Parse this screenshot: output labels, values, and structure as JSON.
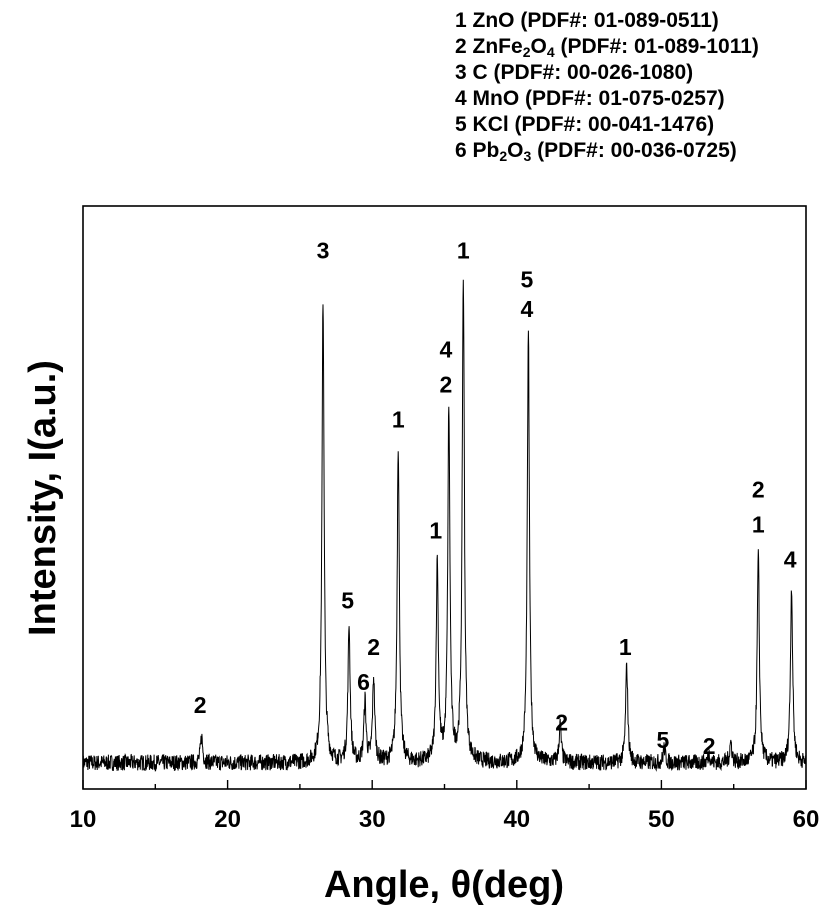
{
  "legend": {
    "entries": [
      {
        "num": "1",
        "pre": "ZnO",
        "s1": "",
        "mid": "",
        "s2": "",
        "post": " (PDF#:  01-089-0511)"
      },
      {
        "num": "2",
        "pre": "ZnFe",
        "s1": "2",
        "mid": "O",
        "s2": "4",
        "post": " (PDF#:  01-089-1011)"
      },
      {
        "num": "3",
        "pre": "C",
        "s1": "",
        "mid": "",
        "s2": "",
        "post": " (PDF#:  00-026-1080)"
      },
      {
        "num": "4",
        "pre": "MnO",
        "s1": "",
        "mid": "",
        "s2": "",
        "post": " (PDF#:  01-075-0257)"
      },
      {
        "num": "5",
        "pre": "KCl",
        "s1": "",
        "mid": "",
        "s2": "",
        "post": " (PDF#:  00-041-1476)"
      },
      {
        "num": "6",
        "pre": "Pb",
        "s1": "2",
        "mid": "O",
        "s2": "3",
        "post": " (PDF#:  00-036-0725)"
      }
    ]
  },
  "chart_data": {
    "type": "line",
    "xlabel": "Angle, θ(deg)",
    "ylabel": "Intensity, I(a.u.)",
    "xlim": [
      10,
      60
    ],
    "ylim": [
      0,
      100
    ],
    "x_ticks": [
      10,
      20,
      30,
      40,
      50,
      60
    ],
    "x_minor_step": 5,
    "grid": false,
    "line_color": "#000000",
    "baseline": 4.5,
    "noise": 1.4,
    "peaks": [
      {
        "x": 18.2,
        "y": 9
      },
      {
        "x": 26.6,
        "y": 84
      },
      {
        "x": 28.4,
        "y": 28
      },
      {
        "x": 29.5,
        "y": 15
      },
      {
        "x": 30.1,
        "y": 19
      },
      {
        "x": 31.8,
        "y": 59
      },
      {
        "x": 34.5,
        "y": 39
      },
      {
        "x": 35.3,
        "y": 65
      },
      {
        "x": 36.3,
        "y": 87
      },
      {
        "x": 40.8,
        "y": 78
      },
      {
        "x": 43.0,
        "y": 11
      },
      {
        "x": 47.6,
        "y": 21
      },
      {
        "x": 50.2,
        "y": 7
      },
      {
        "x": 53.3,
        "y": 6
      },
      {
        "x": 54.8,
        "y": 8
      },
      {
        "x": 56.7,
        "y": 40
      },
      {
        "x": 59.0,
        "y": 35
      }
    ],
    "annotations": [
      {
        "x": 18.1,
        "y": 13,
        "text": "2"
      },
      {
        "x": 26.6,
        "y": 91,
        "text": "3"
      },
      {
        "x": 28.3,
        "y": 31,
        "text": "5"
      },
      {
        "x": 29.4,
        "y": 17,
        "text": "6"
      },
      {
        "x": 30.1,
        "y": 23,
        "text": "2"
      },
      {
        "x": 31.8,
        "y": 62,
        "text": "1"
      },
      {
        "x": 34.4,
        "y": 43,
        "text": "1"
      },
      {
        "x": 35.1,
        "y": 74,
        "text": "4"
      },
      {
        "x": 35.1,
        "y": 68,
        "text": "2"
      },
      {
        "x": 36.3,
        "y": 91,
        "text": "1"
      },
      {
        "x": 40.7,
        "y": 86,
        "text": "5"
      },
      {
        "x": 40.7,
        "y": 81,
        "text": "4"
      },
      {
        "x": 43.1,
        "y": 10,
        "text": "2"
      },
      {
        "x": 47.5,
        "y": 23,
        "text": "1"
      },
      {
        "x": 50.1,
        "y": 7,
        "text": "5"
      },
      {
        "x": 53.3,
        "y": 6,
        "text": "2"
      },
      {
        "x": 56.7,
        "y": 50,
        "text": "2"
      },
      {
        "x": 56.7,
        "y": 44,
        "text": "1"
      },
      {
        "x": 58.9,
        "y": 38,
        "text": "4"
      }
    ]
  }
}
